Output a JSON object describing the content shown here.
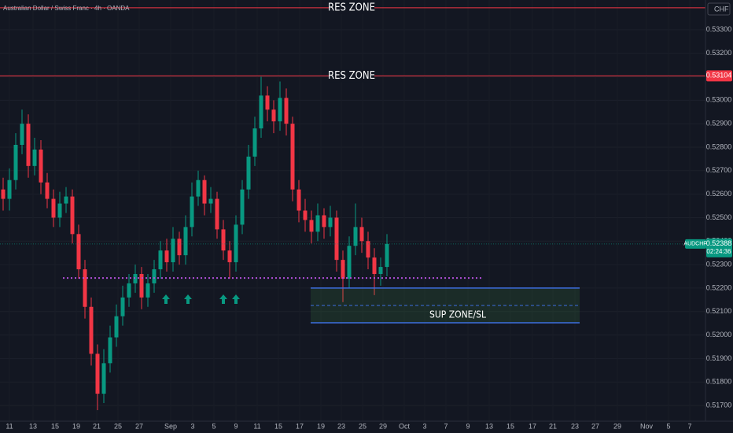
{
  "chart_data": {
    "type": "candlestick",
    "title": "Australian Dollar / Swiss Franc · 4h · OANDA",
    "currency": "CHF",
    "symbol": "AUDCHF",
    "last_price": {
      "value": 0.52388,
      "label": "0.52388"
    },
    "countdown": "02:24:36",
    "ylim": [
      0.51633,
      0.53427
    ],
    "yticks": [
      {
        "value": 0.533,
        "label": "0.53300"
      },
      {
        "value": 0.532,
        "label": "0.53200"
      },
      {
        "value": 0.531,
        "label": "0.53100"
      },
      {
        "value": 0.53,
        "label": "0.53000"
      },
      {
        "value": 0.529,
        "label": "0.52900"
      },
      {
        "value": 0.528,
        "label": "0.52800"
      },
      {
        "value": 0.527,
        "label": "0.52700"
      },
      {
        "value": 0.526,
        "label": "0.52600"
      },
      {
        "value": 0.525,
        "label": "0.52500"
      },
      {
        "value": 0.524,
        "label": "0.52400"
      },
      {
        "value": 0.523,
        "label": "0.52300"
      },
      {
        "value": 0.522,
        "label": "0.52200"
      },
      {
        "value": 0.521,
        "label": "0.52100"
      },
      {
        "value": 0.52,
        "label": "0.52000"
      },
      {
        "value": 0.519,
        "label": "0.51900"
      },
      {
        "value": 0.518,
        "label": "0.51800"
      },
      {
        "value": 0.517,
        "label": "0.51700"
      }
    ],
    "xticks": [
      "11",
      "13",
      "15",
      "19",
      "21",
      "25",
      "27",
      "Sep",
      "3",
      "5",
      "9",
      "11",
      "15",
      "17",
      "19",
      "23",
      "25",
      "29",
      "Oct",
      "3",
      "7",
      "9",
      "13",
      "15",
      "17",
      "21",
      "23",
      "27",
      "29",
      "Nov",
      "5",
      "7"
    ],
    "grid": true,
    "up_color": "#089981",
    "down_color": "#f23645",
    "candles": {
      "open": [
        0.5262,
        0.5258,
        0.5266,
        0.5281,
        0.529,
        0.5272,
        0.5279,
        0.5265,
        0.5258,
        0.525,
        0.5256,
        0.5259,
        0.5243,
        0.5228,
        0.5212,
        0.5192,
        0.5175,
        0.5188,
        0.5199,
        0.5208,
        0.5216,
        0.5222,
        0.5226,
        0.5216,
        0.5222,
        0.5228,
        0.5236,
        0.5231,
        0.5241,
        0.5234,
        0.5246,
        0.5259,
        0.5266,
        0.5256,
        0.5258,
        0.5245,
        0.5236,
        0.5231,
        0.5247,
        0.5262,
        0.5276,
        0.5288,
        0.5302,
        0.5296,
        0.5291,
        0.5301,
        0.529,
        0.5262,
        0.5253,
        0.5249,
        0.5244,
        0.5251,
        0.5246,
        0.525,
        0.5232,
        0.5224,
        0.5238,
        0.5246,
        0.524,
        0.5233,
        0.5226,
        0.5229
      ],
      "high": [
        0.5267,
        0.5271,
        0.5286,
        0.5296,
        0.5294,
        0.5284,
        0.5283,
        0.5269,
        0.5262,
        0.5261,
        0.5263,
        0.5262,
        0.5247,
        0.5232,
        0.5216,
        0.5196,
        0.5194,
        0.5204,
        0.5213,
        0.5221,
        0.5226,
        0.523,
        0.5229,
        0.5226,
        0.5232,
        0.524,
        0.5241,
        0.5246,
        0.5244,
        0.5251,
        0.5265,
        0.527,
        0.5268,
        0.5263,
        0.5261,
        0.5249,
        0.524,
        0.5251,
        0.5266,
        0.5281,
        0.5293,
        0.531,
        0.5306,
        0.53,
        0.5308,
        0.5305,
        0.5293,
        0.5266,
        0.5258,
        0.5253,
        0.5256,
        0.5254,
        0.5255,
        0.5253,
        0.5236,
        0.5242,
        0.5256,
        0.525,
        0.5244,
        0.5237,
        0.5233,
        0.5243
      ],
      "low": [
        0.5253,
        0.5253,
        0.5262,
        0.5277,
        0.5267,
        0.5268,
        0.526,
        0.5254,
        0.5246,
        0.5246,
        0.5252,
        0.5239,
        0.5224,
        0.5207,
        0.5187,
        0.5168,
        0.5171,
        0.5184,
        0.5195,
        0.5204,
        0.5212,
        0.5218,
        0.5211,
        0.5212,
        0.5218,
        0.5224,
        0.5227,
        0.5227,
        0.523,
        0.523,
        0.5242,
        0.5255,
        0.5251,
        0.5252,
        0.5241,
        0.5232,
        0.5224,
        0.5227,
        0.5243,
        0.5258,
        0.5272,
        0.5284,
        0.5291,
        0.5286,
        0.5287,
        0.5285,
        0.5257,
        0.5248,
        0.5244,
        0.5239,
        0.524,
        0.5241,
        0.5242,
        0.5227,
        0.5214,
        0.522,
        0.5234,
        0.5235,
        0.5228,
        0.5217,
        0.5221,
        0.5225
      ],
      "close": [
        0.5258,
        0.5266,
        0.5281,
        0.529,
        0.5272,
        0.5279,
        0.5265,
        0.5258,
        0.525,
        0.5256,
        0.5259,
        0.5243,
        0.5228,
        0.5212,
        0.5192,
        0.5175,
        0.5188,
        0.5199,
        0.5208,
        0.5216,
        0.5222,
        0.5226,
        0.5216,
        0.5222,
        0.5228,
        0.5236,
        0.5231,
        0.5241,
        0.5234,
        0.5246,
        0.5259,
        0.5266,
        0.5256,
        0.5258,
        0.5245,
        0.5236,
        0.5231,
        0.5247,
        0.5262,
        0.5276,
        0.5288,
        0.5302,
        0.5296,
        0.5291,
        0.5301,
        0.529,
        0.5262,
        0.5253,
        0.5249,
        0.5244,
        0.5251,
        0.5246,
        0.525,
        0.5232,
        0.5224,
        0.5238,
        0.5246,
        0.524,
        0.5233,
        0.5226,
        0.5229,
        0.52388
      ]
    },
    "res_zones": [
      {
        "label": "RES ZONE",
        "price": 0.53394
      },
      {
        "label": "RES ZONE",
        "price": {
          "value": 0.53104,
          "label": "0.53104"
        }
      }
    ],
    "support_line": 0.52243,
    "sup_zone": {
      "label": "SUP ZONE/SL",
      "top": 0.522,
      "mid": 0.52126,
      "bottom": 0.52052
    }
  }
}
